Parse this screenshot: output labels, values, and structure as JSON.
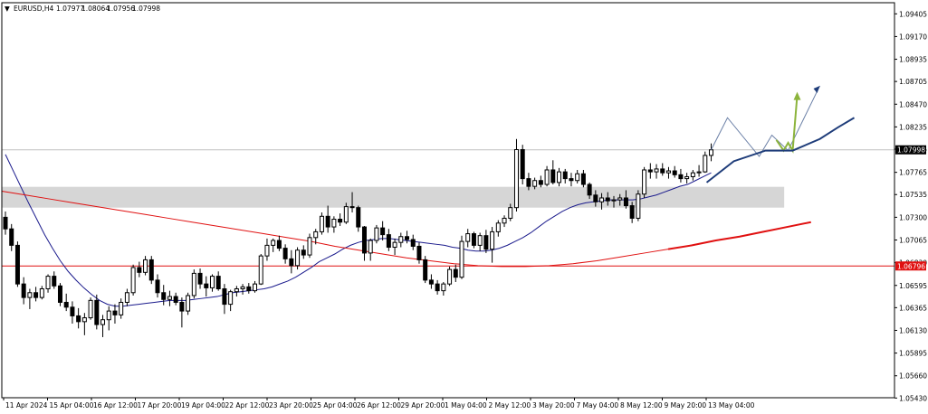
{
  "header": {
    "collapse_glyph": "▼",
    "symbol": "EURUSD,H4",
    "open": "1.07977",
    "high": "1.08064",
    "low": "1.07956",
    "close": "1.07998"
  },
  "colors": {
    "background": "#ffffff",
    "frame": "#000000",
    "bull_fill": "#ffffff",
    "bear_fill": "#000000",
    "ma_fast": "#1a1a8c",
    "ma_slow": "#e01010",
    "ma_fast_projection": "#1f3d7a",
    "ma_slow_projection": "#e01010",
    "zone": "#d6d6d6",
    "support_line": "#e01010",
    "price_line": "#c0c0c0",
    "path_blue": "#6a7fa6",
    "path_green": "#8cb43c",
    "arrow_blue": "#1f3d7a",
    "arrow_green": "#8cb43c",
    "label_current_bg": "#000000",
    "label_current_text": "#ffffff",
    "label_support_bg": "#e01010",
    "label_support_text": "#ffffff"
  },
  "chart_data": {
    "type": "candlestick",
    "symbol": "EURUSD",
    "timeframe": "H4",
    "ylim": [
      1.05433,
      1.0952
    ],
    "y_ticks": [
      "1.09405",
      "1.09170",
      "1.08935",
      "1.08705",
      "1.08470",
      "1.08235",
      "1.08005",
      "1.07765",
      "1.07535",
      "1.07300",
      "1.07065",
      "1.06830",
      "1.06595",
      "1.06365",
      "1.06130",
      "1.05895",
      "1.05660",
      "1.05430"
    ],
    "x_ticks": [
      "11 Apr 2024",
      "15 Apr 04:00",
      "16 Apr 12:00",
      "17 Apr 20:00",
      "19 Apr 04:00",
      "22 Apr 12:00",
      "23 Apr 20:00",
      "25 Apr 04:00",
      "26 Apr 12:00",
      "29 Apr 20:00",
      "1 May 04:00",
      "2 May 12:00",
      "3 May 20:00",
      "7 May 04:00",
      "8 May 12:00",
      "9 May 20:00",
      "13 May 04:00"
    ],
    "current_price": "1.07998",
    "support_level": "1.06796",
    "supply_zone": [
      1.074,
      1.07615
    ],
    "candles": [
      [
        1.073,
        1.0736,
        1.0712,
        1.0718
      ],
      [
        1.0718,
        1.0723,
        1.0695,
        1.0701
      ],
      [
        1.0701,
        1.0705,
        1.0658,
        1.0661
      ],
      [
        1.0661,
        1.0668,
        1.064,
        1.0647
      ],
      [
        1.0647,
        1.0656,
        1.0635,
        1.0652
      ],
      [
        1.0652,
        1.0658,
        1.0643,
        1.0647
      ],
      [
        1.0647,
        1.0659,
        1.0645,
        1.0656
      ],
      [
        1.0656,
        1.0671,
        1.0652,
        1.0669
      ],
      [
        1.0669,
        1.0674,
        1.0656,
        1.0659
      ],
      [
        1.0659,
        1.0662,
        1.0638,
        1.0642
      ],
      [
        1.0642,
        1.0651,
        1.0633,
        1.0637
      ],
      [
        1.0637,
        1.0643,
        1.062,
        1.0628
      ],
      [
        1.0628,
        1.0636,
        1.0615,
        1.0622
      ],
      [
        1.0622,
        1.0631,
        1.0608,
        1.0626
      ],
      [
        1.0626,
        1.0647,
        1.0624,
        1.0644
      ],
      [
        1.0644,
        1.065,
        1.0614,
        1.0619
      ],
      [
        1.0619,
        1.0629,
        1.0606,
        1.0624
      ],
      [
        1.0624,
        1.0638,
        1.0613,
        1.0633
      ],
      [
        1.0633,
        1.064,
        1.062,
        1.0629
      ],
      [
        1.0629,
        1.0646,
        1.0625,
        1.0642
      ],
      [
        1.0642,
        1.0656,
        1.0638,
        1.0652
      ],
      [
        1.0652,
        1.0681,
        1.0649,
        1.0678
      ],
      [
        1.0678,
        1.0684,
        1.0668,
        1.0673
      ],
      [
        1.0673,
        1.069,
        1.067,
        1.0686
      ],
      [
        1.0686,
        1.069,
        1.0661,
        1.0665
      ],
      [
        1.0665,
        1.0671,
        1.0647,
        1.0652
      ],
      [
        1.0652,
        1.066,
        1.0639,
        1.0645
      ],
      [
        1.0645,
        1.0654,
        1.0638,
        1.0648
      ],
      [
        1.0648,
        1.0652,
        1.0639,
        1.0642
      ],
      [
        1.0642,
        1.0647,
        1.0616,
        1.0633
      ],
      [
        1.0633,
        1.0652,
        1.0629,
        1.0649
      ],
      [
        1.0649,
        1.0676,
        1.0646,
        1.0672
      ],
      [
        1.0672,
        1.0677,
        1.0656,
        1.0661
      ],
      [
        1.0661,
        1.0669,
        1.0648,
        1.0657
      ],
      [
        1.0657,
        1.0671,
        1.0653,
        1.0669
      ],
      [
        1.0669,
        1.0674,
        1.0654,
        1.0656
      ],
      [
        1.0656,
        1.0661,
        1.063,
        1.064
      ],
      [
        1.064,
        1.0655,
        1.0633,
        1.0653
      ],
      [
        1.0653,
        1.0659,
        1.0648,
        1.0656
      ],
      [
        1.0656,
        1.0661,
        1.065,
        1.0658
      ],
      [
        1.0658,
        1.0662,
        1.0651,
        1.0654
      ],
      [
        1.0654,
        1.0664,
        1.0652,
        1.0661
      ],
      [
        1.0661,
        1.0692,
        1.066,
        1.069
      ],
      [
        1.069,
        1.0708,
        1.0685,
        1.0701
      ],
      [
        1.0701,
        1.0708,
        1.0694,
        1.0706
      ],
      [
        1.0706,
        1.0711,
        1.0695,
        1.0698
      ],
      [
        1.0698,
        1.0702,
        1.0682,
        1.0687
      ],
      [
        1.0687,
        1.0696,
        1.0672,
        1.068
      ],
      [
        1.068,
        1.0699,
        1.0676,
        1.0696
      ],
      [
        1.0696,
        1.0701,
        1.0687,
        1.0691
      ],
      [
        1.0691,
        1.0713,
        1.0688,
        1.0709
      ],
      [
        1.0709,
        1.0718,
        1.0702,
        1.0715
      ],
      [
        1.0715,
        1.0735,
        1.0712,
        1.0731
      ],
      [
        1.0731,
        1.0742,
        1.0714,
        1.072
      ],
      [
        1.072,
        1.0731,
        1.0714,
        1.0728
      ],
      [
        1.0728,
        1.0734,
        1.0721,
        1.0725
      ],
      [
        1.0725,
        1.0745,
        1.0723,
        1.0741
      ],
      [
        1.0741,
        1.0756,
        1.0735,
        1.074
      ],
      [
        1.074,
        1.0742,
        1.0715,
        1.072
      ],
      [
        1.072,
        1.0721,
        1.0685,
        1.0693
      ],
      [
        1.0693,
        1.0708,
        1.0685,
        1.0706
      ],
      [
        1.0706,
        1.0722,
        1.0703,
        1.0719
      ],
      [
        1.0719,
        1.0726,
        1.0706,
        1.0712
      ],
      [
        1.0712,
        1.0718,
        1.0695,
        1.0699
      ],
      [
        1.0699,
        1.0708,
        1.0691,
        1.0704
      ],
      [
        1.0704,
        1.0714,
        1.0699,
        1.071
      ],
      [
        1.071,
        1.0716,
        1.0703,
        1.0707
      ],
      [
        1.0707,
        1.0712,
        1.0696,
        1.07
      ],
      [
        1.07,
        1.0704,
        1.0682,
        1.0686
      ],
      [
        1.0686,
        1.069,
        1.0662,
        1.0665
      ],
      [
        1.0665,
        1.0671,
        1.0656,
        1.0661
      ],
      [
        1.0661,
        1.0665,
        1.065,
        1.0654
      ],
      [
        1.0654,
        1.0663,
        1.0649,
        1.0661
      ],
      [
        1.0661,
        1.0679,
        1.0659,
        1.0676
      ],
      [
        1.0676,
        1.0681,
        1.0663,
        1.0668
      ],
      [
        1.0668,
        1.0711,
        1.0666,
        1.0705
      ],
      [
        1.0705,
        1.0718,
        1.0699,
        1.0713
      ],
      [
        1.0713,
        1.0715,
        1.0698,
        1.0701
      ],
      [
        1.0701,
        1.0714,
        1.0695,
        1.0711
      ],
      [
        1.0711,
        1.0717,
        1.0693,
        1.0697
      ],
      [
        1.0697,
        1.072,
        1.0683,
        1.0715
      ],
      [
        1.0715,
        1.0727,
        1.071,
        1.0724
      ],
      [
        1.0724,
        1.0732,
        1.072,
        1.0729
      ],
      [
        1.0729,
        1.0744,
        1.0726,
        1.074
      ],
      [
        1.074,
        1.0811,
        1.0736,
        1.08
      ],
      [
        1.08,
        1.0805,
        1.0764,
        1.077
      ],
      [
        1.077,
        1.0776,
        1.0758,
        1.0762
      ],
      [
        1.0762,
        1.0771,
        1.0759,
        1.0768
      ],
      [
        1.0768,
        1.0773,
        1.0761,
        1.0764
      ],
      [
        1.0764,
        1.0783,
        1.0762,
        1.0779
      ],
      [
        1.0779,
        1.0789,
        1.0764,
        1.0766
      ],
      [
        1.0766,
        1.0781,
        1.0762,
        1.0777
      ],
      [
        1.0777,
        1.078,
        1.0765,
        1.077
      ],
      [
        1.077,
        1.0776,
        1.0762,
        1.0768
      ],
      [
        1.0768,
        1.0779,
        1.0765,
        1.0775
      ],
      [
        1.0775,
        1.0779,
        1.0761,
        1.0764
      ],
      [
        1.0764,
        1.0766,
        1.0749,
        1.0753
      ],
      [
        1.0753,
        1.0758,
        1.0741,
        1.0746
      ],
      [
        1.0746,
        1.0755,
        1.0738,
        1.075
      ],
      [
        1.075,
        1.0756,
        1.0742,
        1.0747
      ],
      [
        1.0747,
        1.0752,
        1.074,
        1.0748
      ],
      [
        1.0748,
        1.0754,
        1.0742,
        1.075
      ],
      [
        1.075,
        1.0758,
        1.0739,
        1.0742
      ],
      [
        1.0742,
        1.0746,
        1.0724,
        1.0729
      ],
      [
        1.0729,
        1.0758,
        1.0726,
        1.0754
      ],
      [
        1.0754,
        1.0782,
        1.075,
        1.0779
      ],
      [
        1.0779,
        1.0786,
        1.077,
        1.0777
      ],
      [
        1.0777,
        1.0785,
        1.077,
        1.078
      ],
      [
        1.078,
        1.0786,
        1.0773,
        1.0776
      ],
      [
        1.0776,
        1.0782,
        1.077,
        1.0778
      ],
      [
        1.0778,
        1.0783,
        1.0771,
        1.0774
      ],
      [
        1.0774,
        1.078,
        1.0766,
        1.077
      ],
      [
        1.077,
        1.0776,
        1.0765,
        1.0772
      ],
      [
        1.0772,
        1.0779,
        1.0768,
        1.0776
      ],
      [
        1.0776,
        1.0784,
        1.0772,
        1.0777
      ],
      [
        1.0777,
        1.0798,
        1.0776,
        1.0794
      ],
      [
        1.0794,
        1.08064,
        1.0788,
        1.07998
      ]
    ],
    "series": [
      {
        "values": [
          1.0795,
          1.0778,
          1.0761,
          1.0744,
          1.0728,
          1.0712,
          1.0698,
          1.0685,
          1.0674,
          1.0665,
          1.0657,
          1.065,
          1.0644,
          1.064,
          1.0638,
          1.0638,
          1.0639,
          1.064,
          1.0641,
          1.0642,
          1.0643,
          1.0644,
          1.0644,
          1.0644,
          1.0645,
          1.0646,
          1.0647,
          1.0648,
          1.065,
          1.0652,
          1.0653,
          1.0654,
          1.0655,
          1.0656,
          1.0658,
          1.0661,
          1.0664,
          1.0668,
          1.0673,
          1.0678,
          1.0684,
          1.0688,
          1.0692,
          1.0697,
          1.0701,
          1.0704,
          1.0706,
          1.0707,
          1.0708,
          1.0708,
          1.0707,
          1.0706,
          1.0705,
          1.0704,
          1.0703,
          1.0702,
          1.0701,
          1.0699,
          1.0698,
          1.0696,
          1.0695,
          1.0695,
          1.0696,
          1.0698,
          1.0701,
          1.0705,
          1.0709,
          1.0714,
          1.072,
          1.0726,
          1.0731,
          1.0736,
          1.074,
          1.0743,
          1.0745,
          1.0746,
          1.0747,
          1.0748,
          1.0748,
          1.0748,
          1.0748,
          1.0749,
          1.0751,
          1.0753,
          1.0756,
          1.0759,
          1.0762,
          1.0764,
          1.0768,
          1.0772,
          1.0776
        ]
      },
      {
        "values": [
          1.0757,
          1.0753,
          1.0749,
          1.0745,
          1.0741,
          1.0737,
          1.0733,
          1.0729,
          1.0725,
          1.0721,
          1.0717,
          1.0713,
          1.0709,
          1.0705,
          1.07,
          1.0696,
          1.0692,
          1.0688,
          1.0685,
          1.0682,
          1.068,
          1.0679,
          1.0679,
          1.068,
          1.0682,
          1.0685,
          1.0689,
          1.0693,
          1.0697,
          1.0701,
          1.0706,
          1.071,
          1.0715,
          1.072,
          1.0725
        ]
      }
    ]
  }
}
